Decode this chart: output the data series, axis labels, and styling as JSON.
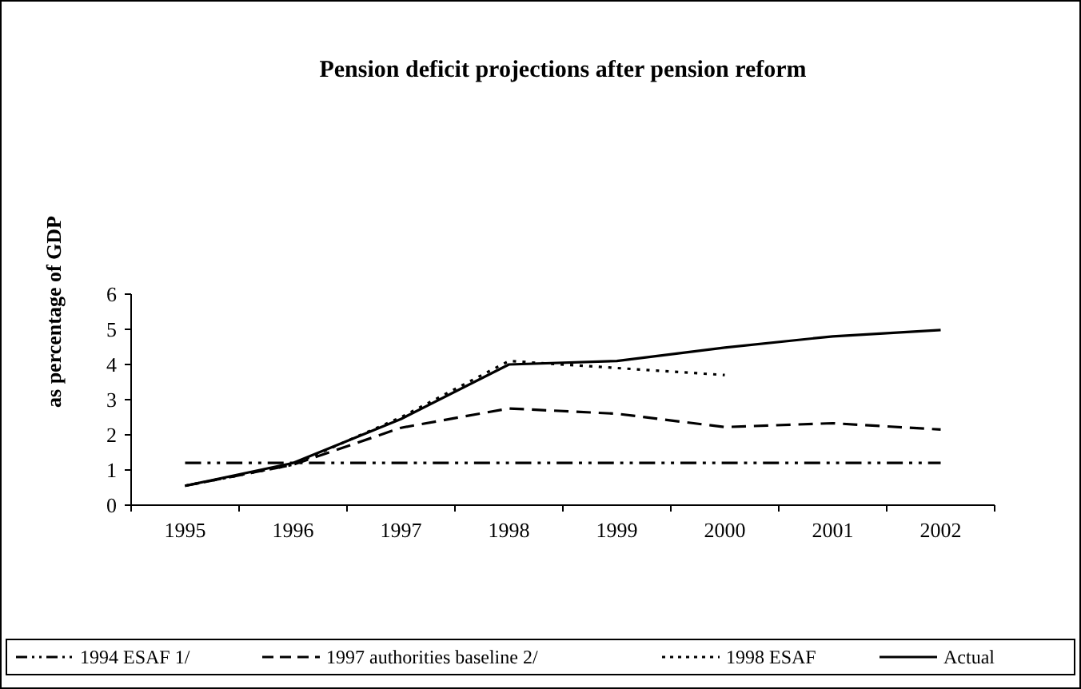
{
  "chart_data": {
    "type": "line",
    "title": "Pension deficit projections after pension reform",
    "ylabel": "as percentage of GDP",
    "categories": [
      "1995",
      "1996",
      "1997",
      "1998",
      "1999",
      "2000",
      "2001",
      "2002"
    ],
    "series": [
      {
        "name": "1994 ESAF 1/",
        "color": "#000000",
        "line_style": "dashdot",
        "values": [
          1.2,
          1.2,
          1.2,
          1.2,
          1.2,
          1.2,
          1.2,
          1.2
        ]
      },
      {
        "name": "1997 authorities baseline 2/",
        "color": "#000000",
        "line_style": "dashed",
        "values": [
          0.55,
          1.15,
          2.2,
          2.75,
          2.6,
          2.22,
          2.33,
          2.15
        ]
      },
      {
        "name": "1998 ESAF",
        "color": "#000000",
        "line_style": "dotted",
        "values": [
          0.55,
          1.15,
          2.5,
          4.1,
          3.9,
          3.7,
          null,
          null
        ]
      },
      {
        "name": "Actual",
        "color": "#000000",
        "line_style": "solid",
        "values": [
          0.55,
          1.2,
          2.45,
          4.0,
          4.1,
          4.48,
          4.8,
          4.98
        ]
      }
    ],
    "ylim": [
      0,
      6
    ],
    "yticks": [
      0,
      1,
      2,
      3,
      4,
      5,
      6
    ],
    "grid": false,
    "legend": "bottom"
  }
}
